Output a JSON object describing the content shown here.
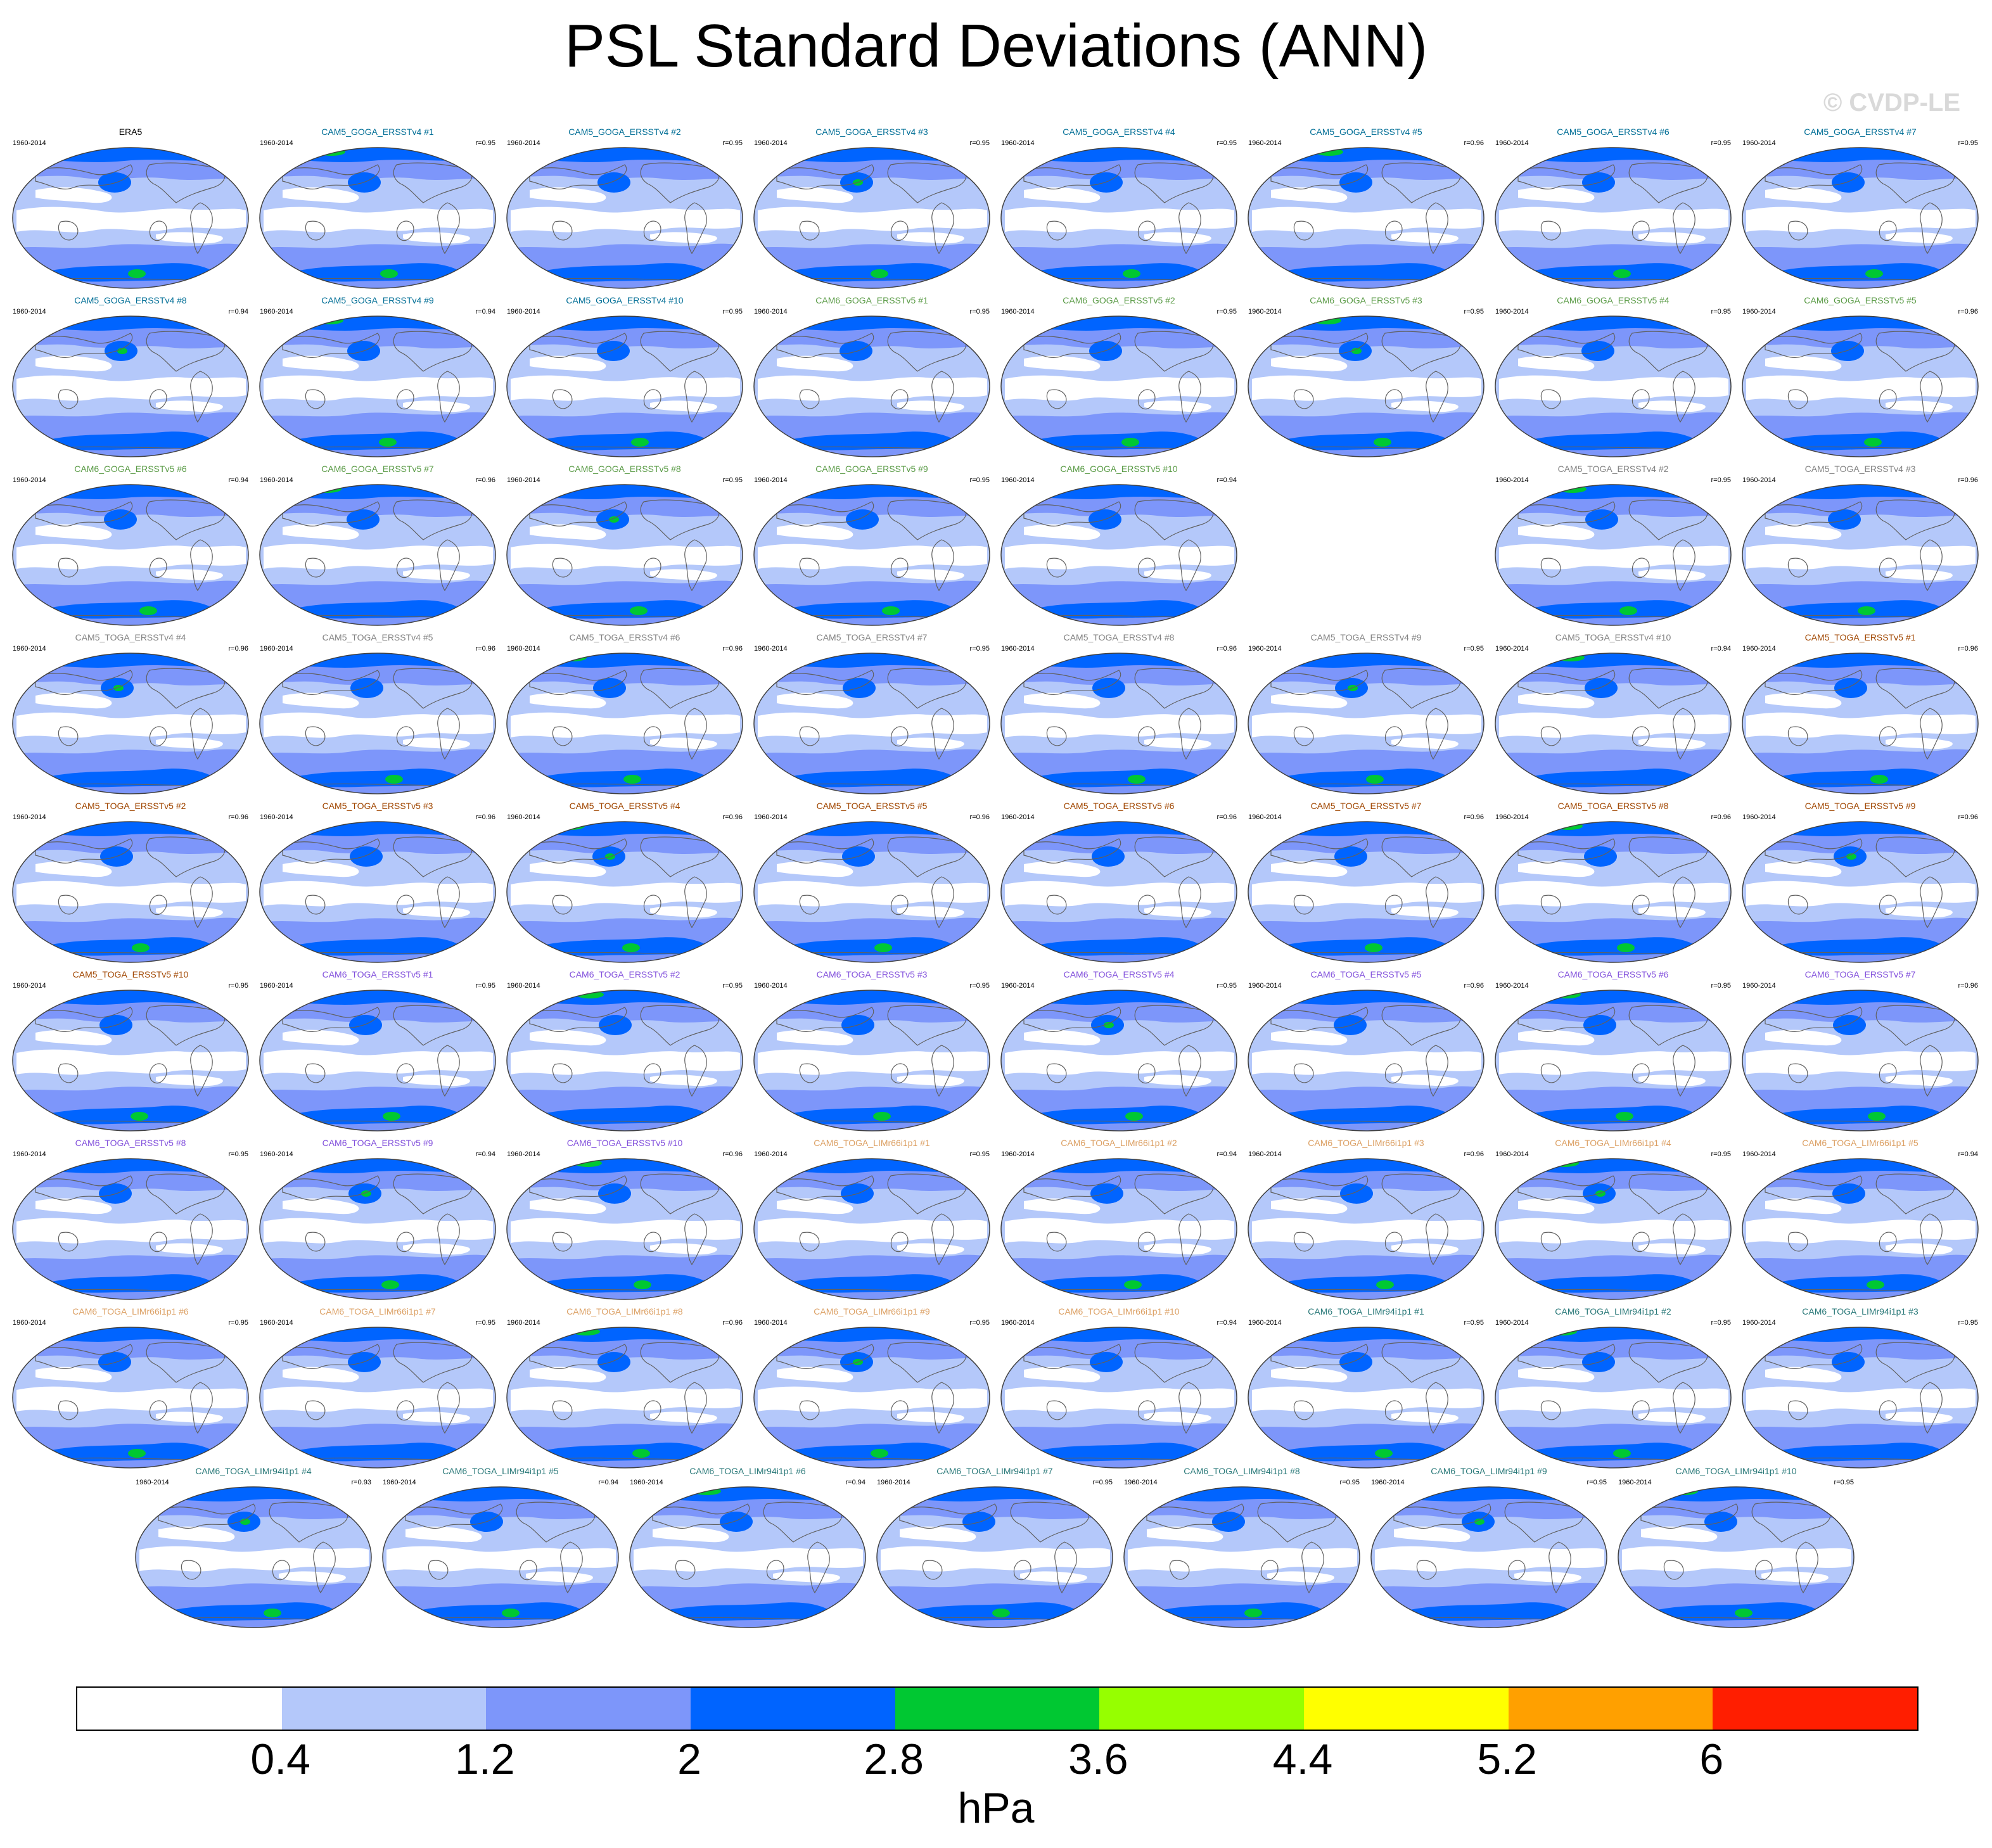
{
  "title": "PSL Standard Deviations (ANN)",
  "watermark": "© CVDP-LE",
  "colors": {
    "levels": [
      "#ffffff",
      "#b4c8fa",
      "#7d96fa",
      "#0064ff",
      "#00c832",
      "#96ff00",
      "#ffff00",
      "#ffa000",
      "#ff1e00"
    ],
    "coast": "#606060",
    "border": "#404040",
    "name_colors": {
      "obs": "#000000",
      "CAM5_GOGA_ERSSTv4": "#006e96",
      "CAM6_GOGA_ERSSTv5": "#5a9b46",
      "CAM5_TOGA_ERSSTv4": "#828282",
      "CAM5_TOGA_ERSSTv5": "#a04600",
      "CAM6_TOGA_ERSSTv5": "#8250dc",
      "CAM6_TOGA_LIMr66i1p1": "#dca064",
      "CAM6_TOGA_LIMr94i1p1": "#287878"
    }
  },
  "chart_data": {
    "type": "map-panel-grid",
    "variable": "PSL",
    "statistic": "Standard Deviations",
    "season": "ANN",
    "period": "1960-2014",
    "units": "hPa",
    "colorbar_ticks": [
      "0.4",
      "1.2",
      "2",
      "2.8",
      "3.6",
      "4.4",
      "5.2",
      "6"
    ],
    "panels": [
      {
        "name": "ERA5",
        "group": "obs",
        "period": "1960-2014",
        "r": ""
      },
      {
        "name": "CAM5_GOGA_ERSSTv4 #1",
        "group": "CAM5_GOGA_ERSSTv4",
        "period": "1960-2014",
        "r": "r=0.95"
      },
      {
        "name": "CAM5_GOGA_ERSSTv4 #2",
        "group": "CAM5_GOGA_ERSSTv4",
        "period": "1960-2014",
        "r": "r=0.95"
      },
      {
        "name": "CAM5_GOGA_ERSSTv4 #3",
        "group": "CAM5_GOGA_ERSSTv4",
        "period": "1960-2014",
        "r": "r=0.95"
      },
      {
        "name": "CAM5_GOGA_ERSSTv4 #4",
        "group": "CAM5_GOGA_ERSSTv4",
        "period": "1960-2014",
        "r": "r=0.95"
      },
      {
        "name": "CAM5_GOGA_ERSSTv4 #5",
        "group": "CAM5_GOGA_ERSSTv4",
        "period": "1960-2014",
        "r": "r=0.96"
      },
      {
        "name": "CAM5_GOGA_ERSSTv4 #6",
        "group": "CAM5_GOGA_ERSSTv4",
        "period": "1960-2014",
        "r": "r=0.95"
      },
      {
        "name": "CAM5_GOGA_ERSSTv4 #7",
        "group": "CAM5_GOGA_ERSSTv4",
        "period": "1960-2014",
        "r": "r=0.95"
      },
      {
        "name": "CAM5_GOGA_ERSSTv4 #8",
        "group": "CAM5_GOGA_ERSSTv4",
        "period": "1960-2014",
        "r": "r=0.94"
      },
      {
        "name": "CAM5_GOGA_ERSSTv4 #9",
        "group": "CAM5_GOGA_ERSSTv4",
        "period": "1960-2014",
        "r": "r=0.94"
      },
      {
        "name": "CAM5_GOGA_ERSSTv4 #10",
        "group": "CAM5_GOGA_ERSSTv4",
        "period": "1960-2014",
        "r": "r=0.95"
      },
      {
        "name": "CAM6_GOGA_ERSSTv5 #1",
        "group": "CAM6_GOGA_ERSSTv5",
        "period": "1960-2014",
        "r": "r=0.95"
      },
      {
        "name": "CAM6_GOGA_ERSSTv5 #2",
        "group": "CAM6_GOGA_ERSSTv5",
        "period": "1960-2014",
        "r": "r=0.95"
      },
      {
        "name": "CAM6_GOGA_ERSSTv5 #3",
        "group": "CAM6_GOGA_ERSSTv5",
        "period": "1960-2014",
        "r": "r=0.95"
      },
      {
        "name": "CAM6_GOGA_ERSSTv5 #4",
        "group": "CAM6_GOGA_ERSSTv5",
        "period": "1960-2014",
        "r": "r=0.95"
      },
      {
        "name": "CAM6_GOGA_ERSSTv5 #5",
        "group": "CAM6_GOGA_ERSSTv5",
        "period": "1960-2014",
        "r": "r=0.96"
      },
      {
        "name": "CAM6_GOGA_ERSSTv5 #6",
        "group": "CAM6_GOGA_ERSSTv5",
        "period": "1960-2014",
        "r": "r=0.94"
      },
      {
        "name": "CAM6_GOGA_ERSSTv5 #7",
        "group": "CAM6_GOGA_ERSSTv5",
        "period": "1960-2014",
        "r": "r=0.96"
      },
      {
        "name": "CAM6_GOGA_ERSSTv5 #8",
        "group": "CAM6_GOGA_ERSSTv5",
        "period": "1960-2014",
        "r": "r=0.95"
      },
      {
        "name": "CAM6_GOGA_ERSSTv5 #9",
        "group": "CAM6_GOGA_ERSSTv5",
        "period": "1960-2014",
        "r": "r=0.95"
      },
      {
        "name": "CAM6_GOGA_ERSSTv5 #10",
        "group": "CAM6_GOGA_ERSSTv5",
        "period": "1960-2014",
        "r": "r=0.94"
      },
      {
        "name": "CAM5_TOGA_ERSSTv4 #2",
        "group": "CAM5_TOGA_ERSSTv4",
        "period": "1960-2014",
        "r": "r=0.95"
      },
      {
        "name": "CAM5_TOGA_ERSSTv4 #3",
        "group": "CAM5_TOGA_ERSSTv4",
        "period": "1960-2014",
        "r": "r=0.96"
      },
      {
        "name": "CAM5_TOGA_ERSSTv4 #4",
        "group": "CAM5_TOGA_ERSSTv4",
        "period": "1960-2014",
        "r": "r=0.96"
      },
      {
        "name": "CAM5_TOGA_ERSSTv4 #5",
        "group": "CAM5_TOGA_ERSSTv4",
        "period": "1960-2014",
        "r": "r=0.96"
      },
      {
        "name": "CAM5_TOGA_ERSSTv4 #6",
        "group": "CAM5_TOGA_ERSSTv4",
        "period": "1960-2014",
        "r": "r=0.96"
      },
      {
        "name": "CAM5_TOGA_ERSSTv4 #7",
        "group": "CAM5_TOGA_ERSSTv4",
        "period": "1960-2014",
        "r": "r=0.95"
      },
      {
        "name": "CAM5_TOGA_ERSSTv4 #8",
        "group": "CAM5_TOGA_ERSSTv4",
        "period": "1960-2014",
        "r": "r=0.96"
      },
      {
        "name": "CAM5_TOGA_ERSSTv4 #9",
        "group": "CAM5_TOGA_ERSSTv4",
        "period": "1960-2014",
        "r": "r=0.95"
      },
      {
        "name": "CAM5_TOGA_ERSSTv4 #10",
        "group": "CAM5_TOGA_ERSSTv4",
        "period": "1960-2014",
        "r": "r=0.94"
      },
      {
        "name": "CAM5_TOGA_ERSSTv5 #1",
        "group": "CAM5_TOGA_ERSSTv5",
        "period": "1960-2014",
        "r": "r=0.96"
      },
      {
        "name": "CAM5_TOGA_ERSSTv5 #2",
        "group": "CAM5_TOGA_ERSSTv5",
        "period": "1960-2014",
        "r": "r=0.96"
      },
      {
        "name": "CAM5_TOGA_ERSSTv5 #3",
        "group": "CAM5_TOGA_ERSSTv5",
        "period": "1960-2014",
        "r": "r=0.96"
      },
      {
        "name": "CAM5_TOGA_ERSSTv5 #4",
        "group": "CAM5_TOGA_ERSSTv5",
        "period": "1960-2014",
        "r": "r=0.96"
      },
      {
        "name": "CAM5_TOGA_ERSSTv5 #5",
        "group": "CAM5_TOGA_ERSSTv5",
        "period": "1960-2014",
        "r": "r=0.96"
      },
      {
        "name": "CAM5_TOGA_ERSSTv5 #6",
        "group": "CAM5_TOGA_ERSSTv5",
        "period": "1960-2014",
        "r": "r=0.96"
      },
      {
        "name": "CAM5_TOGA_ERSSTv5 #7",
        "group": "CAM5_TOGA_ERSSTv5",
        "period": "1960-2014",
        "r": "r=0.96"
      },
      {
        "name": "CAM5_TOGA_ERSSTv5 #8",
        "group": "CAM5_TOGA_ERSSTv5",
        "period": "1960-2014",
        "r": "r=0.96"
      },
      {
        "name": "CAM5_TOGA_ERSSTv5 #9",
        "group": "CAM5_TOGA_ERSSTv5",
        "period": "1960-2014",
        "r": "r=0.96"
      },
      {
        "name": "CAM5_TOGA_ERSSTv5 #10",
        "group": "CAM5_TOGA_ERSSTv5",
        "period": "1960-2014",
        "r": "r=0.95"
      },
      {
        "name": "CAM6_TOGA_ERSSTv5 #1",
        "group": "CAM6_TOGA_ERSSTv5",
        "period": "1960-2014",
        "r": "r=0.95"
      },
      {
        "name": "CAM6_TOGA_ERSSTv5 #2",
        "group": "CAM6_TOGA_ERSSTv5",
        "period": "1960-2014",
        "r": "r=0.95"
      },
      {
        "name": "CAM6_TOGA_ERSSTv5 #3",
        "group": "CAM6_TOGA_ERSSTv5",
        "period": "1960-2014",
        "r": "r=0.95"
      },
      {
        "name": "CAM6_TOGA_ERSSTv5 #4",
        "group": "CAM6_TOGA_ERSSTv5",
        "period": "1960-2014",
        "r": "r=0.95"
      },
      {
        "name": "CAM6_TOGA_ERSSTv5 #5",
        "group": "CAM6_TOGA_ERSSTv5",
        "period": "1960-2014",
        "r": "r=0.96"
      },
      {
        "name": "CAM6_TOGA_ERSSTv5 #6",
        "group": "CAM6_TOGA_ERSSTv5",
        "period": "1960-2014",
        "r": "r=0.95"
      },
      {
        "name": "CAM6_TOGA_ERSSTv5 #7",
        "group": "CAM6_TOGA_ERSSTv5",
        "period": "1960-2014",
        "r": "r=0.96"
      },
      {
        "name": "CAM6_TOGA_ERSSTv5 #8",
        "group": "CAM6_TOGA_ERSSTv5",
        "period": "1960-2014",
        "r": "r=0.95"
      },
      {
        "name": "CAM6_TOGA_ERSSTv5 #9",
        "group": "CAM6_TOGA_ERSSTv5",
        "period": "1960-2014",
        "r": "r=0.94"
      },
      {
        "name": "CAM6_TOGA_ERSSTv5 #10",
        "group": "CAM6_TOGA_ERSSTv5",
        "period": "1960-2014",
        "r": "r=0.96"
      },
      {
        "name": "CAM6_TOGA_LIMr66i1p1 #1",
        "group": "CAM6_TOGA_LIMr66i1p1",
        "period": "1960-2014",
        "r": "r=0.95"
      },
      {
        "name": "CAM6_TOGA_LIMr66i1p1 #2",
        "group": "CAM6_TOGA_LIMr66i1p1",
        "period": "1960-2014",
        "r": "r=0.94"
      },
      {
        "name": "CAM6_TOGA_LIMr66i1p1 #3",
        "group": "CAM6_TOGA_LIMr66i1p1",
        "period": "1960-2014",
        "r": "r=0.96"
      },
      {
        "name": "CAM6_TOGA_LIMr66i1p1 #4",
        "group": "CAM6_TOGA_LIMr66i1p1",
        "period": "1960-2014",
        "r": "r=0.95"
      },
      {
        "name": "CAM6_TOGA_LIMr66i1p1 #5",
        "group": "CAM6_TOGA_LIMr66i1p1",
        "period": "1960-2014",
        "r": "r=0.94"
      },
      {
        "name": "CAM6_TOGA_LIMr66i1p1 #6",
        "group": "CAM6_TOGA_LIMr66i1p1",
        "period": "1960-2014",
        "r": "r=0.95"
      },
      {
        "name": "CAM6_TOGA_LIMr66i1p1 #7",
        "group": "CAM6_TOGA_LIMr66i1p1",
        "period": "1960-2014",
        "r": "r=0.95"
      },
      {
        "name": "CAM6_TOGA_LIMr66i1p1 #8",
        "group": "CAM6_TOGA_LIMr66i1p1",
        "period": "1960-2014",
        "r": "r=0.96"
      },
      {
        "name": "CAM6_TOGA_LIMr66i1p1 #9",
        "group": "CAM6_TOGA_LIMr66i1p1",
        "period": "1960-2014",
        "r": "r=0.95"
      },
      {
        "name": "CAM6_TOGA_LIMr66i1p1 #10",
        "group": "CAM6_TOGA_LIMr66i1p1",
        "period": "1960-2014",
        "r": "r=0.94"
      },
      {
        "name": "CAM6_TOGA_LIMr94i1p1 #1",
        "group": "CAM6_TOGA_LIMr94i1p1",
        "period": "1960-2014",
        "r": "r=0.95"
      },
      {
        "name": "CAM6_TOGA_LIMr94i1p1 #2",
        "group": "CAM6_TOGA_LIMr94i1p1",
        "period": "1960-2014",
        "r": "r=0.95"
      },
      {
        "name": "CAM6_TOGA_LIMr94i1p1 #3",
        "group": "CAM6_TOGA_LIMr94i1p1",
        "period": "1960-2014",
        "r": "r=0.95"
      },
      {
        "name": "CAM6_TOGA_LIMr94i1p1 #4",
        "group": "CAM6_TOGA_LIMr94i1p1",
        "period": "1960-2014",
        "r": "r=0.93"
      },
      {
        "name": "CAM6_TOGA_LIMr94i1p1 #5",
        "group": "CAM6_TOGA_LIMr94i1p1",
        "period": "1960-2014",
        "r": "r=0.94"
      },
      {
        "name": "CAM6_TOGA_LIMr94i1p1 #6",
        "group": "CAM6_TOGA_LIMr94i1p1",
        "period": "1960-2014",
        "r": "r=0.94"
      },
      {
        "name": "CAM6_TOGA_LIMr94i1p1 #7",
        "group": "CAM6_TOGA_LIMr94i1p1",
        "period": "1960-2014",
        "r": "r=0.95"
      },
      {
        "name": "CAM6_TOGA_LIMr94i1p1 #8",
        "group": "CAM6_TOGA_LIMr94i1p1",
        "period": "1960-2014",
        "r": "r=0.95"
      },
      {
        "name": "CAM6_TOGA_LIMr94i1p1 #9",
        "group": "CAM6_TOGA_LIMr94i1p1",
        "period": "1960-2014",
        "r": "r=0.95"
      },
      {
        "name": "CAM6_TOGA_LIMr94i1p1 #10",
        "group": "CAM6_TOGA_LIMr94i1p1",
        "period": "1960-2014",
        "r": "r=0.95"
      }
    ]
  }
}
